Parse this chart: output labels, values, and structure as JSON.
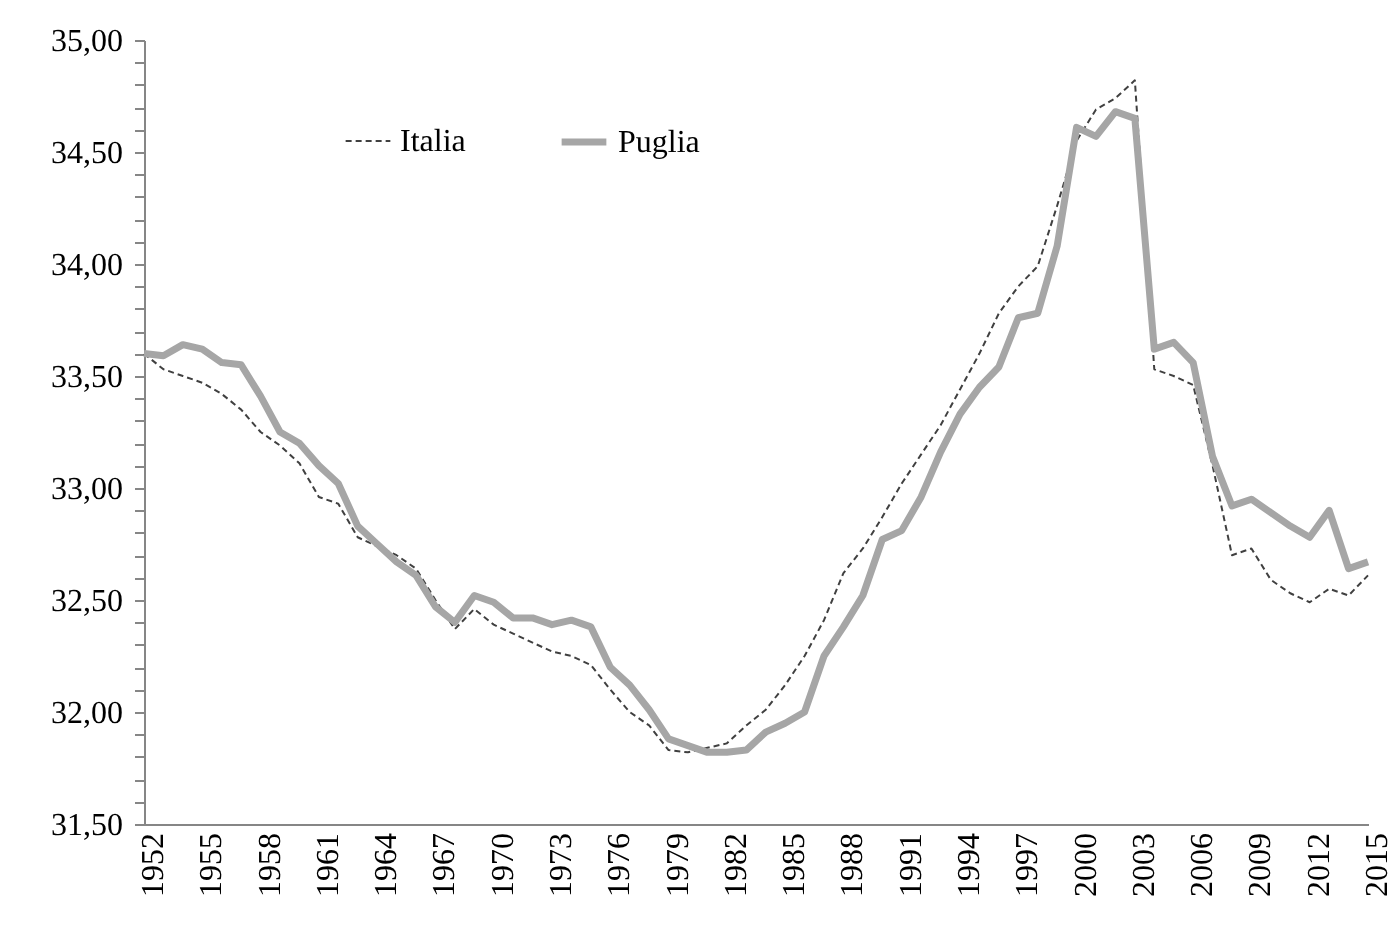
{
  "chart_data": {
    "type": "line",
    "x": [
      1952,
      1953,
      1954,
      1955,
      1956,
      1957,
      1958,
      1959,
      1960,
      1961,
      1962,
      1963,
      1964,
      1965,
      1966,
      1967,
      1968,
      1969,
      1970,
      1971,
      1972,
      1973,
      1974,
      1975,
      1976,
      1977,
      1978,
      1979,
      1980,
      1981,
      1982,
      1983,
      1984,
      1985,
      1986,
      1987,
      1988,
      1989,
      1990,
      1991,
      1992,
      1993,
      1994,
      1995,
      1996,
      1997,
      1998,
      1999,
      2000,
      2001,
      2002,
      2003,
      2004,
      2005,
      2006,
      2007,
      2008,
      2009,
      2010,
      2011,
      2012,
      2013,
      2014,
      2015
    ],
    "series": [
      {
        "name": "Italia",
        "color": "#404040",
        "line_style": "dashed",
        "values": [
          33.6,
          33.53,
          33.5,
          33.47,
          33.42,
          33.35,
          33.25,
          33.19,
          33.11,
          32.96,
          32.93,
          32.78,
          32.74,
          32.7,
          32.64,
          32.5,
          32.37,
          32.46,
          32.39,
          32.35,
          32.31,
          32.27,
          32.25,
          32.21,
          32.1,
          32.0,
          31.94,
          31.83,
          31.82,
          31.84,
          31.86,
          31.94,
          32.01,
          32.12,
          32.25,
          32.41,
          32.62,
          32.73,
          32.87,
          33.02,
          33.15,
          33.28,
          33.44,
          33.6,
          33.78,
          33.9,
          33.99,
          34.26,
          34.55,
          34.69,
          34.74,
          34.82,
          33.53,
          33.5,
          33.46,
          33.1,
          32.7,
          32.73,
          32.59,
          32.53,
          32.49,
          32.55,
          32.52,
          32.61
        ]
      },
      {
        "name": "Puglia",
        "color": "#a6a6a6",
        "line_style": "solid",
        "values": [
          33.6,
          33.59,
          33.64,
          33.62,
          33.56,
          33.55,
          33.41,
          33.25,
          33.2,
          33.1,
          33.02,
          32.83,
          32.75,
          32.67,
          32.61,
          32.47,
          32.4,
          32.52,
          32.49,
          32.42,
          32.42,
          32.39,
          32.41,
          32.38,
          32.2,
          32.12,
          32.01,
          31.88,
          31.85,
          31.82,
          31.82,
          31.83,
          31.91,
          31.95,
          32.0,
          32.25,
          32.38,
          32.52,
          32.77,
          32.81,
          32.96,
          33.16,
          33.33,
          33.45,
          33.54,
          33.76,
          33.78,
          34.08,
          34.61,
          34.57,
          34.68,
          34.65,
          33.62,
          33.65,
          33.56,
          33.14,
          32.92,
          32.95,
          32.89,
          32.83,
          32.78,
          32.9,
          32.64,
          32.67
        ]
      }
    ],
    "xlim": [
      1952,
      2015
    ],
    "xticks": [
      1952,
      1955,
      1958,
      1961,
      1964,
      1967,
      1970,
      1973,
      1976,
      1979,
      1982,
      1985,
      1988,
      1991,
      1994,
      1997,
      2000,
      2003,
      2006,
      2009,
      2012,
      2015
    ],
    "ylim": [
      31.5,
      35
    ],
    "yticks": [
      {
        "value": 31.5,
        "label": "31,50"
      },
      {
        "value": 31.6,
        "label": null
      },
      {
        "value": 31.7,
        "label": null
      },
      {
        "value": 31.8,
        "label": null
      },
      {
        "value": 31.9,
        "label": null
      },
      {
        "value": 32,
        "label": "32,00"
      },
      {
        "value": 32.1,
        "label": null
      },
      {
        "value": 32.2,
        "label": null
      },
      {
        "value": 32.3,
        "label": null
      },
      {
        "value": 32.4,
        "label": null
      },
      {
        "value": 32.5,
        "label": "32,50"
      },
      {
        "value": 32.6,
        "label": null
      },
      {
        "value": 32.7,
        "label": null
      },
      {
        "value": 32.8,
        "label": null
      },
      {
        "value": 32.9,
        "label": null
      },
      {
        "value": 33,
        "label": "33,00"
      },
      {
        "value": 33.1,
        "label": null
      },
      {
        "value": 33.2,
        "label": null
      },
      {
        "value": 33.3,
        "label": null
      },
      {
        "value": 33.4,
        "label": null
      },
      {
        "value": 33.5,
        "label": "33,50"
      },
      {
        "value": 33.6,
        "label": null
      },
      {
        "value": 33.7,
        "label": null
      },
      {
        "value": 33.8,
        "label": null
      },
      {
        "value": 33.9,
        "label": null
      },
      {
        "value": 34,
        "label": "34,00"
      },
      {
        "value": 34.1,
        "label": null
      },
      {
        "value": 34.2,
        "label": null
      },
      {
        "value": 34.3,
        "label": null
      },
      {
        "value": 34.4,
        "label": null
      },
      {
        "value": 34.5,
        "label": "34,50"
      },
      {
        "value": 34.6,
        "label": null
      },
      {
        "value": 34.7,
        "label": null
      },
      {
        "value": 34.8,
        "label": null
      },
      {
        "value": 34.9,
        "label": null
      },
      {
        "value": 35,
        "label": "35,00"
      }
    ],
    "grid": false,
    "legend": "top left"
  }
}
